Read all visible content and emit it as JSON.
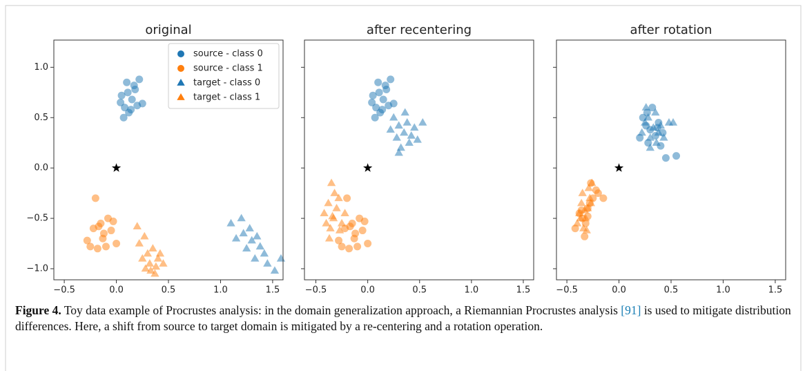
{
  "chart_data": [
    {
      "type": "scatter",
      "title": "original",
      "xlim": [
        -0.6,
        1.6
      ],
      "ylim": [
        -1.11,
        1.27
      ],
      "xticks": [
        {
          "value": -0.5,
          "label": "−0.5"
        },
        {
          "value": 0,
          "label": "0.0"
        },
        {
          "value": 0.5,
          "label": "0.5"
        },
        {
          "value": 1,
          "label": "1.0"
        },
        {
          "value": 1.5,
          "label": "1.5"
        }
      ],
      "yticks": [
        {
          "value": -1,
          "label": "−1.0"
        },
        {
          "value": -0.5,
          "label": "−0.5"
        },
        {
          "value": 0,
          "label": "0.0"
        },
        {
          "value": 0.5,
          "label": "0.5"
        },
        {
          "value": 1,
          "label": "1.0"
        }
      ],
      "legend": "upper right",
      "alpha": 0.5,
      "star": [
        0,
        0
      ],
      "series": [
        {
          "name": "source - class 0",
          "color": "#1f77b4",
          "marker": "o",
          "x": [
            0.05,
            0.08,
            0.1,
            0.12,
            0.15,
            0.18,
            0.2,
            0.22,
            0.07,
            0.11,
            0.14,
            0.25,
            0.04,
            0.17
          ],
          "y": [
            0.72,
            0.6,
            0.85,
            0.55,
            0.68,
            0.78,
            0.62,
            0.88,
            0.5,
            0.75,
            0.58,
            0.64,
            0.65,
            0.82
          ]
        },
        {
          "name": "source - class 1",
          "color": "#ff7f0e",
          "marker": "o",
          "x": [
            -0.28,
            -0.22,
            -0.18,
            -0.15,
            -0.12,
            -0.1,
            -0.08,
            -0.05,
            -0.2,
            -0.13,
            -0.17,
            0.0,
            -0.03,
            -0.25
          ],
          "y": [
            -0.72,
            -0.6,
            -0.8,
            -0.55,
            -0.65,
            -0.78,
            -0.5,
            -0.62,
            -0.3,
            -0.7,
            -0.58,
            -0.75,
            -0.53,
            -0.78
          ]
        },
        {
          "name": "target - class 0",
          "color": "#1f77b4",
          "marker": "^",
          "x": [
            1.1,
            1.15,
            1.2,
            1.22,
            1.25,
            1.28,
            1.3,
            1.33,
            1.35,
            1.38,
            1.42,
            1.45,
            1.52,
            1.58
          ],
          "y": [
            -0.55,
            -0.7,
            -0.5,
            -0.65,
            -0.8,
            -0.6,
            -0.72,
            -0.9,
            -0.68,
            -0.78,
            -0.85,
            -0.95,
            -1.02,
            -0.9
          ]
        },
        {
          "name": "target - class 1",
          "color": "#ff7f0e",
          "marker": "^",
          "x": [
            0.2,
            0.22,
            0.25,
            0.28,
            0.3,
            0.32,
            0.35,
            0.37,
            0.4,
            0.42,
            0.45,
            0.27,
            0.33,
            0.38
          ],
          "y": [
            -0.58,
            -0.75,
            -0.9,
            -1.0,
            -0.85,
            -0.95,
            -0.8,
            -1.05,
            -0.9,
            -0.85,
            -0.95,
            -0.68,
            -1.02,
            -0.98
          ]
        }
      ]
    },
    {
      "type": "scatter",
      "title": "after recentering",
      "xlim": [
        -0.61,
        1.6
      ],
      "ylim": [
        -1.11,
        1.27
      ],
      "sharey": true,
      "xticks": [
        {
          "value": -0.5,
          "label": "−0.5"
        },
        {
          "value": 0,
          "label": "0.0"
        },
        {
          "value": 0.5,
          "label": "0.5"
        },
        {
          "value": 1,
          "label": "1.0"
        },
        {
          "value": 1.5,
          "label": "1.5"
        }
      ],
      "alpha": 0.5,
      "star": [
        0,
        0
      ],
      "series": [
        {
          "color": "#1f77b4",
          "marker": "o",
          "x": [
            0.05,
            0.08,
            0.1,
            0.12,
            0.15,
            0.18,
            0.2,
            0.22,
            0.07,
            0.11,
            0.14,
            0.25,
            0.04,
            0.17
          ],
          "y": [
            0.72,
            0.6,
            0.85,
            0.55,
            0.68,
            0.78,
            0.62,
            0.88,
            0.5,
            0.75,
            0.58,
            0.64,
            0.65,
            0.82
          ]
        },
        {
          "color": "#ff7f0e",
          "marker": "o",
          "x": [
            -0.28,
            -0.22,
            -0.18,
            -0.15,
            -0.12,
            -0.1,
            -0.08,
            -0.05,
            -0.2,
            -0.13,
            -0.17,
            0.0,
            -0.03,
            -0.25
          ],
          "y": [
            -0.72,
            -0.6,
            -0.8,
            -0.55,
            -0.65,
            -0.78,
            -0.5,
            -0.62,
            -0.3,
            -0.7,
            -0.58,
            -0.75,
            -0.53,
            -0.78
          ]
        },
        {
          "color": "#1f77b4",
          "marker": "^",
          "x": [
            0.22,
            0.25,
            0.28,
            0.3,
            0.32,
            0.35,
            0.38,
            0.4,
            0.42,
            0.45,
            0.48,
            0.53,
            0.3,
            0.36
          ],
          "y": [
            0.38,
            0.5,
            0.3,
            0.42,
            0.2,
            0.35,
            0.45,
            0.25,
            0.32,
            0.4,
            0.28,
            0.45,
            0.15,
            0.55
          ]
        },
        {
          "color": "#ff7f0e",
          "marker": "^",
          "x": [
            -0.42,
            -0.4,
            -0.38,
            -0.36,
            -0.35,
            -0.33,
            -0.3,
            -0.28,
            -0.25,
            -0.22,
            -0.37,
            -0.32,
            -0.27,
            -0.34
          ],
          "y": [
            -0.45,
            -0.55,
            -0.35,
            -0.6,
            -0.15,
            -0.5,
            -0.4,
            -0.3,
            -0.55,
            -0.45,
            -0.7,
            -0.25,
            -0.62,
            -0.48
          ]
        }
      ]
    },
    {
      "type": "scatter",
      "title": "after rotation",
      "xlim": [
        -0.6,
        1.6
      ],
      "ylim": [
        -1.11,
        1.27
      ],
      "sharey": true,
      "xticks": [
        {
          "value": -0.5,
          "label": "−0.5"
        },
        {
          "value": 0,
          "label": "0.0"
        },
        {
          "value": 0.5,
          "label": "0.5"
        },
        {
          "value": 1,
          "label": "1.0"
        },
        {
          "value": 1.5,
          "label": "1.5"
        }
      ],
      "alpha": 0.5,
      "star": [
        0,
        0
      ],
      "series": [
        {
          "color": "#1f77b4",
          "marker": "o",
          "x": [
            0.2,
            0.23,
            0.26,
            0.28,
            0.3,
            0.32,
            0.35,
            0.38,
            0.4,
            0.42,
            0.45,
            0.55,
            0.27,
            0.37
          ],
          "y": [
            0.3,
            0.5,
            0.42,
            0.25,
            0.38,
            0.6,
            0.32,
            0.45,
            0.22,
            0.35,
            0.1,
            0.12,
            0.55,
            0.4
          ]
        },
        {
          "color": "#ff7f0e",
          "marker": "o",
          "x": [
            -0.42,
            -0.38,
            -0.35,
            -0.33,
            -0.3,
            -0.28,
            -0.25,
            -0.22,
            -0.2,
            -0.15,
            -0.32,
            -0.27,
            -0.36,
            -0.3
          ],
          "y": [
            -0.6,
            -0.45,
            -0.5,
            -0.68,
            -0.4,
            -0.35,
            -0.3,
            -0.22,
            -0.25,
            -0.3,
            -0.55,
            -0.15,
            -0.42,
            -0.48
          ]
        },
        {
          "color": "#1f77b4",
          "marker": "^",
          "x": [
            0.22,
            0.25,
            0.28,
            0.3,
            0.33,
            0.35,
            0.38,
            0.4,
            0.43,
            0.48,
            0.3,
            0.36,
            0.26,
            0.52
          ],
          "y": [
            0.35,
            0.45,
            0.5,
            0.3,
            0.4,
            0.55,
            0.35,
            0.42,
            0.3,
            0.45,
            0.2,
            0.25,
            0.6,
            0.45
          ]
        },
        {
          "color": "#ff7f0e",
          "marker": "^",
          "x": [
            -0.4,
            -0.38,
            -0.36,
            -0.34,
            -0.32,
            -0.3,
            -0.28,
            -0.26,
            -0.35,
            -0.31,
            -0.29,
            -0.37,
            -0.33,
            -0.27
          ],
          "y": [
            -0.55,
            -0.45,
            -0.35,
            -0.6,
            -0.5,
            -0.4,
            -0.3,
            -0.15,
            -0.25,
            -0.62,
            -0.2,
            -0.5,
            -0.42,
            -0.35
          ]
        }
      ]
    }
  ],
  "caption": {
    "label": "Figure 4.",
    "text_before": "Toy data example of Procrustes analysis: in the domain generalization approach, a Riemannian Procrustes analysis",
    "citation": "[91]",
    "text_after": "is used to mitigate distribution differences. Here, a shift from source to target domain is mitigated by a re-centering and a rotation operation."
  }
}
